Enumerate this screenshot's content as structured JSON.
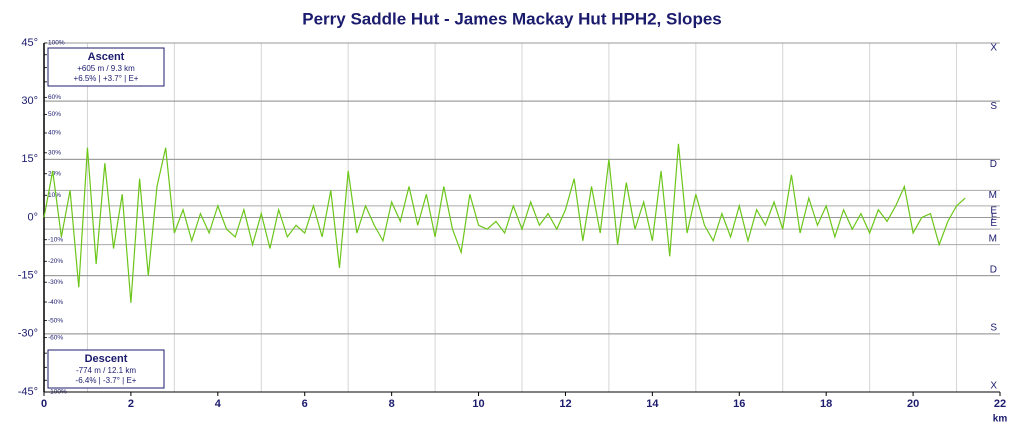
{
  "chart_data": {
    "type": "line",
    "title": "Perry Saddle Hut - James Mackay Hut HPH2, Slopes",
    "x_label": "km",
    "x": [
      0,
      0.2,
      0.4,
      0.6,
      0.8,
      1.0,
      1.2,
      1.4,
      1.6,
      1.8,
      2.0,
      2.2,
      2.4,
      2.6,
      2.8,
      3.0,
      3.2,
      3.4,
      3.6,
      3.8,
      4.0,
      4.2,
      4.4,
      4.6,
      4.8,
      5.0,
      5.2,
      5.4,
      5.6,
      5.8,
      6.0,
      6.2,
      6.4,
      6.6,
      6.8,
      7.0,
      7.2,
      7.4,
      7.6,
      7.8,
      8.0,
      8.2,
      8.4,
      8.6,
      8.8,
      9.0,
      9.2,
      9.4,
      9.6,
      9.8,
      10.0,
      10.2,
      10.4,
      10.6,
      10.8,
      11.0,
      11.2,
      11.4,
      11.6,
      11.8,
      12.0,
      12.2,
      12.4,
      12.6,
      12.8,
      13.0,
      13.2,
      13.4,
      13.6,
      13.8,
      14.0,
      14.2,
      14.4,
      14.6,
      14.8,
      15.0,
      15.2,
      15.4,
      15.6,
      15.8,
      16.0,
      16.2,
      16.4,
      16.6,
      16.8,
      17.0,
      17.2,
      17.4,
      17.6,
      17.8,
      18.0,
      18.2,
      18.4,
      18.6,
      18.8,
      19.0,
      19.2,
      19.4,
      19.6,
      19.8,
      20.0,
      20.2,
      20.4,
      20.6,
      20.8,
      21.0,
      21.2
    ],
    "series": [
      {
        "color": "#6cc61a",
        "values": [
          0,
          12,
          -5,
          7,
          -18,
          18,
          -12,
          14,
          -8,
          6,
          -22,
          10,
          -15,
          8,
          18,
          -4,
          2,
          -6,
          1,
          -4,
          3,
          -3,
          -5,
          2,
          -7,
          1,
          -8,
          2,
          -5,
          -2,
          -4,
          3,
          -5,
          7,
          -13,
          12,
          -4,
          3,
          -2,
          -6,
          4,
          -1,
          8,
          -2,
          6,
          -5,
          8,
          -3,
          -9,
          6,
          -2,
          -3,
          -1,
          -4,
          3,
          -3,
          4,
          -2,
          1,
          -3,
          2,
          10,
          -6,
          8,
          -4,
          15,
          -7,
          9,
          -3,
          4,
          -6,
          12,
          -10,
          19,
          -4,
          6,
          -2,
          -6,
          1,
          -5,
          3,
          -6,
          2,
          -2,
          4,
          -3,
          11,
          -4,
          5,
          -2,
          3,
          -5,
          2,
          -3,
          1,
          -4,
          2,
          -1,
          3,
          8,
          -4,
          0,
          1,
          -7,
          -1,
          3,
          5
        ]
      }
    ],
    "xlim": [
      0,
      22
    ],
    "xticks": [
      0,
      2,
      4,
      6,
      8,
      10,
      12,
      14,
      16,
      18,
      20,
      22
    ],
    "xgrid": [
      1,
      3,
      5,
      7,
      9,
      11,
      13,
      15,
      17,
      19,
      21
    ],
    "ylim": [
      -45,
      45
    ],
    "yticks": [
      {
        "value": 45,
        "label": "45°"
      },
      {
        "value": 30,
        "label": "30°"
      },
      {
        "value": 15,
        "label": "15°"
      },
      {
        "value": 0,
        "label": "0°"
      },
      {
        "value": -15,
        "label": "-15°"
      },
      {
        "value": -30,
        "label": "-30°"
      },
      {
        "value": -45,
        "label": "-45°"
      }
    ],
    "pct_ticks": [
      {
        "value": 45,
        "label": "100%"
      },
      {
        "value": 41.99,
        "label": "90%"
      },
      {
        "value": 38.66,
        "label": "80%"
      },
      {
        "value": 34.99,
        "label": "70%"
      },
      {
        "value": 30.96,
        "label": "60%"
      },
      {
        "value": 26.57,
        "label": "50%"
      },
      {
        "value": 21.8,
        "label": "40%"
      },
      {
        "value": 16.7,
        "label": "30%"
      },
      {
        "value": 11.31,
        "label": "20%"
      },
      {
        "value": 5.71,
        "label": "10%"
      },
      {
        "value": -5.71,
        "label": "-10%"
      },
      {
        "value": -11.31,
        "label": "-20%"
      },
      {
        "value": -16.7,
        "label": "-30%"
      },
      {
        "value": -21.8,
        "label": "-40%"
      },
      {
        "value": -26.57,
        "label": "-50%"
      },
      {
        "value": -30.96,
        "label": "-60%"
      },
      {
        "value": -34.99,
        "label": "-70%"
      },
      {
        "value": -38.66,
        "label": "-80%"
      },
      {
        "value": -41.99,
        "label": "-90%"
      },
      {
        "value": -45,
        "label": "-100%"
      }
    ],
    "bands": [
      {
        "value": 45,
        "label": "X"
      },
      {
        "value": 30,
        "label": "S"
      },
      {
        "value": 15,
        "label": "D"
      },
      {
        "value": 7,
        "label": "M"
      },
      {
        "value": 3,
        "label": "E"
      },
      {
        "value": 0,
        "label": "F"
      },
      {
        "value": -3,
        "label": "E"
      },
      {
        "value": -7,
        "label": "M"
      },
      {
        "value": -15,
        "label": "D"
      },
      {
        "value": -30,
        "label": "S"
      },
      {
        "value": -45,
        "label": "X"
      }
    ],
    "summary": [
      {
        "title": "Ascent",
        "lines": [
          "+605 m / 9.3 km",
          "+6.5% | +3.7° | E+"
        ]
      },
      {
        "title": "Descent",
        "lines": [
          "-774 m / 12.1 km",
          "-6.4% | -3.7° | E+"
        ]
      }
    ]
  }
}
